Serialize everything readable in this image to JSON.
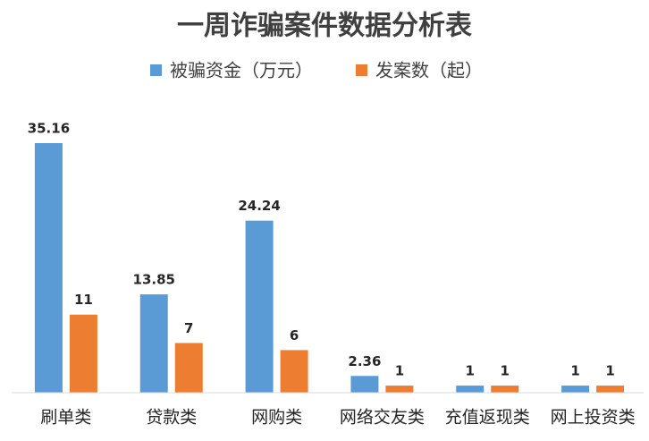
{
  "chart_data": {
    "type": "bar",
    "title": "一周诈骗案件数据分析表",
    "categories": [
      "刷单类",
      "贷款类",
      "网购类",
      "网络交友类",
      "充值返现类",
      "网上投资类"
    ],
    "series": [
      {
        "name": "被骗资金（万元）",
        "color": "#5b9bd5",
        "values": [
          35.16,
          13.85,
          24.24,
          2.36,
          1,
          1
        ]
      },
      {
        "name": "发案数（起）",
        "color": "#ed7d31",
        "values": [
          11,
          7,
          6,
          1,
          1,
          1
        ]
      }
    ],
    "legend": "top"
  }
}
